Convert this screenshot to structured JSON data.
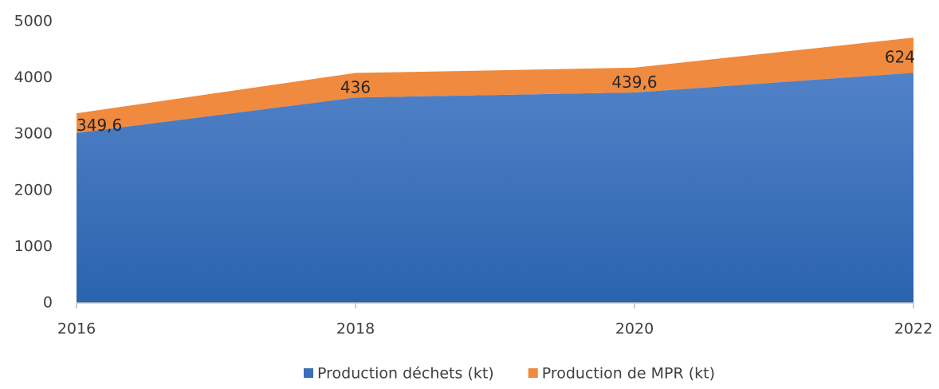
{
  "chart_data": {
    "type": "area",
    "stacked": true,
    "x": [
      2016,
      2018,
      2020,
      2022
    ],
    "series": [
      {
        "name": "Production déchets (kt)",
        "color": "#3a6fba",
        "values": [
          3020,
          3650,
          3740,
          4090
        ]
      },
      {
        "name": "Production de MPR (kt)",
        "color": "#f08a3e",
        "values": [
          349.6,
          436,
          439.6,
          624
        ],
        "value_labels": [
          "349,6",
          "436",
          "439,6",
          "624"
        ]
      }
    ],
    "xlim": [
      2016,
      2022
    ],
    "xticks": [
      2016,
      2018,
      2020,
      2022
    ],
    "ylim": [
      0,
      5000
    ],
    "yticks": [
      0,
      1000,
      2000,
      3000,
      4000,
      5000
    ],
    "legend": "bottom"
  }
}
